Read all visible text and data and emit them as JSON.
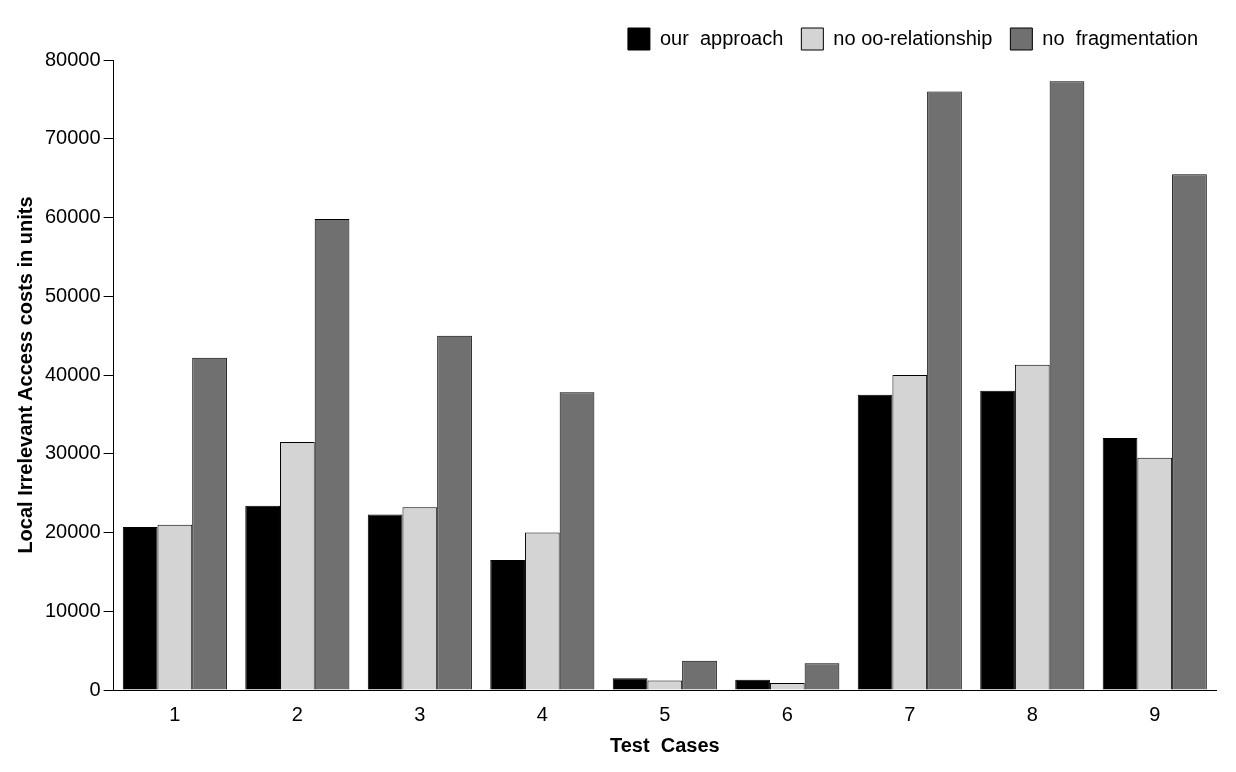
{
  "chart_data": {
    "type": "bar",
    "xlabel": "Test  Cases",
    "ylabel": "Local Irrelevant Access costs in units",
    "categories": [
      "1",
      "2",
      "3",
      "4",
      "5",
      "6",
      "7",
      "8",
      "9"
    ],
    "series": [
      {
        "name": "our  approach",
        "color": "#000000",
        "values": [
          20700,
          23400,
          22300,
          16500,
          1500,
          1300,
          37500,
          38000,
          32000
        ]
      },
      {
        "name": "no oo-relationship",
        "color": "#d4d4d4",
        "values": [
          21000,
          31500,
          23200,
          20000,
          1200,
          900,
          40000,
          41300,
          29500
        ]
      },
      {
        "name": "no  fragmentation",
        "color": "#707070",
        "values": [
          42200,
          59800,
          45000,
          37800,
          3700,
          3400,
          76000,
          77300,
          65500
        ]
      }
    ],
    "ylim": [
      0,
      80000
    ],
    "yticks": [
      0,
      10000,
      20000,
      30000,
      40000,
      50000,
      60000,
      70000,
      80000
    ],
    "grid": false,
    "legend": "top right"
  }
}
